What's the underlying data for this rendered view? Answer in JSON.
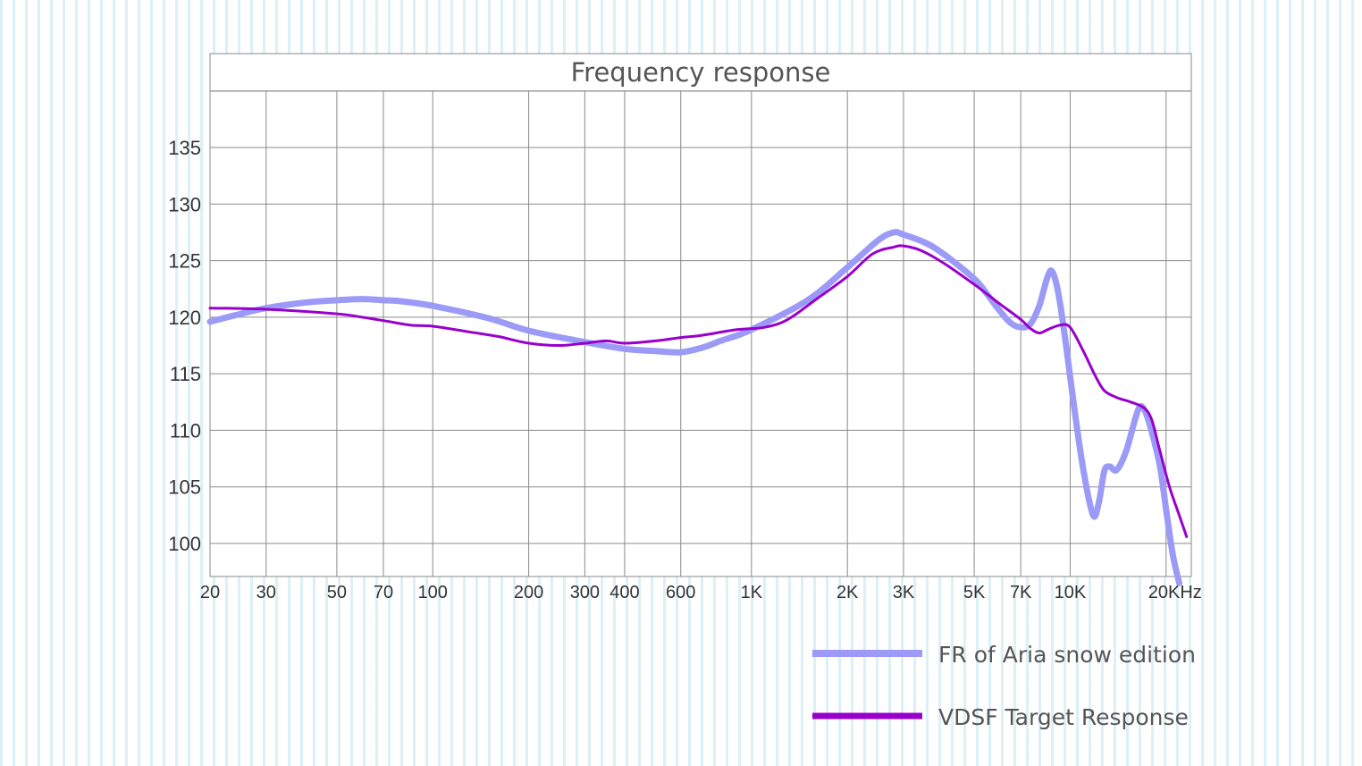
{
  "chart_data": {
    "type": "line",
    "title": "Frequency response",
    "xscale": "log",
    "xlim": [
      20,
      24000
    ],
    "ylim": [
      97,
      143
    ],
    "grid": true,
    "legend_position": "bottom-right",
    "y_ticks": [
      {
        "value": 100,
        "label": "100"
      },
      {
        "value": 105,
        "label": "105"
      },
      {
        "value": 110,
        "label": "110"
      },
      {
        "value": 115,
        "label": "115"
      },
      {
        "value": 120,
        "label": "120"
      },
      {
        "value": 125,
        "label": "125"
      },
      {
        "value": 130,
        "label": "130"
      },
      {
        "value": 135,
        "label": "135"
      },
      {
        "value": 140,
        "label": ""
      }
    ],
    "x_ticks": [
      {
        "value": 20,
        "label": "20"
      },
      {
        "value": 30,
        "label": "30"
      },
      {
        "value": 50,
        "label": "50"
      },
      {
        "value": 70,
        "label": "70"
      },
      {
        "value": 100,
        "label": "100"
      },
      {
        "value": 200,
        "label": "200"
      },
      {
        "value": 300,
        "label": "300"
      },
      {
        "value": 400,
        "label": "400"
      },
      {
        "value": 600,
        "label": "600"
      },
      {
        "value": 1000,
        "label": "1K"
      },
      {
        "value": 2000,
        "label": "2K"
      },
      {
        "value": 3000,
        "label": "3K"
      },
      {
        "value": 5000,
        "label": "5K"
      },
      {
        "value": 7000,
        "label": "7K"
      },
      {
        "value": 10000,
        "label": "10K"
      },
      {
        "value": 20000,
        "label": "20KHz"
      }
    ],
    "series": [
      {
        "name": "FR of Aria snow edition",
        "color": "#9b9bf7",
        "points": [
          [
            20,
            119.6
          ],
          [
            25,
            120.3
          ],
          [
            30,
            120.8
          ],
          [
            40,
            121.3
          ],
          [
            50,
            121.5
          ],
          [
            60,
            121.6
          ],
          [
            70,
            121.5
          ],
          [
            80,
            121.4
          ],
          [
            100,
            121.0
          ],
          [
            150,
            119.9
          ],
          [
            200,
            118.8
          ],
          [
            300,
            117.8
          ],
          [
            400,
            117.2
          ],
          [
            500,
            117.0
          ],
          [
            600,
            116.9
          ],
          [
            700,
            117.3
          ],
          [
            800,
            117.9
          ],
          [
            1000,
            118.9
          ],
          [
            1500,
            121.5
          ],
          [
            2000,
            124.4
          ],
          [
            2500,
            126.8
          ],
          [
            2800,
            127.5
          ],
          [
            3000,
            127.3
          ],
          [
            3500,
            126.6
          ],
          [
            4000,
            125.6
          ],
          [
            5000,
            123.4
          ],
          [
            5500,
            122.0
          ],
          [
            6000,
            120.6
          ],
          [
            6500,
            119.5
          ],
          [
            7000,
            119.1
          ],
          [
            7500,
            119.4
          ],
          [
            8000,
            121.0
          ],
          [
            8500,
            123.6
          ],
          [
            8800,
            124.0
          ],
          [
            9200,
            122.0
          ],
          [
            9700,
            117.6
          ],
          [
            10300,
            112.0
          ],
          [
            11000,
            106.5
          ],
          [
            11800,
            102.5
          ],
          [
            12300,
            103.6
          ],
          [
            12800,
            106.4
          ],
          [
            13300,
            106.8
          ],
          [
            14000,
            106.5
          ],
          [
            15000,
            108.2
          ],
          [
            16000,
            111.0
          ],
          [
            16600,
            112.1
          ],
          [
            17300,
            111.5
          ],
          [
            18300,
            109.2
          ],
          [
            19200,
            106.6
          ],
          [
            20000,
            103.0
          ],
          [
            21000,
            99.0
          ],
          [
            22000,
            96.5
          ]
        ]
      },
      {
        "name": "VDSF Target Response",
        "color": "#9900cc",
        "points": [
          [
            20,
            120.8
          ],
          [
            30,
            120.7
          ],
          [
            50,
            120.3
          ],
          [
            60,
            120.0
          ],
          [
            70,
            119.7
          ],
          [
            85,
            119.3
          ],
          [
            100,
            119.2
          ],
          [
            130,
            118.7
          ],
          [
            160,
            118.3
          ],
          [
            200,
            117.7
          ],
          [
            250,
            117.5
          ],
          [
            300,
            117.7
          ],
          [
            350,
            117.9
          ],
          [
            400,
            117.7
          ],
          [
            500,
            117.9
          ],
          [
            600,
            118.2
          ],
          [
            700,
            118.4
          ],
          [
            900,
            118.9
          ],
          [
            1100,
            119.1
          ],
          [
            1300,
            119.8
          ],
          [
            1600,
            121.6
          ],
          [
            2000,
            123.6
          ],
          [
            2400,
            125.6
          ],
          [
            2800,
            126.2
          ],
          [
            3000,
            126.3
          ],
          [
            3400,
            125.9
          ],
          [
            4000,
            124.8
          ],
          [
            5000,
            122.9
          ],
          [
            6000,
            121.2
          ],
          [
            7000,
            119.8
          ],
          [
            7500,
            119.0
          ],
          [
            8000,
            118.6
          ],
          [
            8500,
            118.9
          ],
          [
            9300,
            119.3
          ],
          [
            10000,
            119.1
          ],
          [
            11000,
            117.0
          ],
          [
            12000,
            114.8
          ],
          [
            12800,
            113.5
          ],
          [
            14000,
            112.9
          ],
          [
            15500,
            112.5
          ],
          [
            17000,
            112.0
          ],
          [
            18000,
            111.0
          ],
          [
            19000,
            108.5
          ],
          [
            20500,
            105.0
          ],
          [
            22000,
            102.5
          ],
          [
            23200,
            100.6
          ]
        ]
      }
    ]
  }
}
